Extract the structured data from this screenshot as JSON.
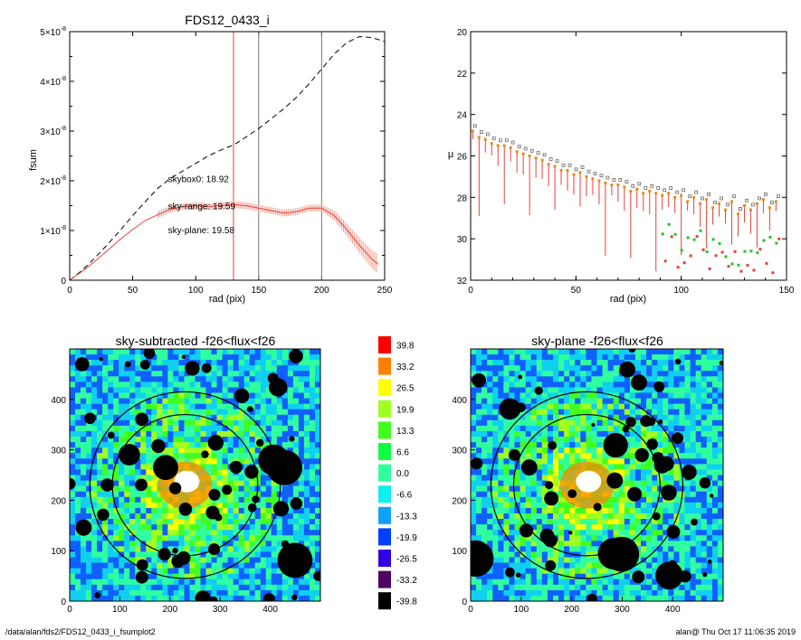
{
  "footer": {
    "path": "/data/alan/fds2/FDS12_0433_i_fsumplot2",
    "stamp": "alan@  Thu Oct 17 11:06:35 2019"
  },
  "chart_data": [
    {
      "type": "line",
      "title": "FDS12_0433_i",
      "xlabel": "rad (pix)",
      "ylabel": "fsum",
      "xlim": [
        0,
        250
      ],
      "ylim": [
        0,
        5e-08
      ],
      "x_ticks": [
        "0",
        "50",
        "100",
        "150",
        "200",
        "250"
      ],
      "y_ticks": [
        {
          "value": 0,
          "mant": "0",
          "exp": ""
        },
        {
          "value": 1e-08,
          "mant": "1×10",
          "exp": "-8"
        },
        {
          "value": 2e-08,
          "mant": "2×10",
          "exp": "-8"
        },
        {
          "value": 3e-08,
          "mant": "3×10",
          "exp": "-8"
        },
        {
          "value": 4e-08,
          "mant": "4×10",
          "exp": "-8"
        },
        {
          "value": 5e-08,
          "mant": "5×10",
          "exp": "-8"
        }
      ],
      "vlines": [
        {
          "x": 130,
          "color": "#e8403a"
        },
        {
          "x": 150,
          "color": "#777777"
        },
        {
          "x": 200,
          "color": "#777777"
        }
      ],
      "annotations": [
        {
          "text": "skybox0: 18.92",
          "color": "#000000",
          "x": 78,
          "y": 1.97e-08
        },
        {
          "text": "sky-range: 19.59",
          "color": "#e8403a",
          "x": 78,
          "y": 1.43e-08
        },
        {
          "text": "sky-plane: 19.58",
          "color": "#2cc02c",
          "x": 78,
          "y": 9.5e-09
        }
      ],
      "series": [
        {
          "style": "dashed",
          "color": "#000000",
          "x": [
            0,
            10,
            20,
            30,
            40,
            50,
            60,
            70,
            80,
            90,
            100,
            110,
            120,
            130,
            140,
            150,
            160,
            170,
            180,
            190,
            200,
            210,
            220,
            230,
            240,
            250
          ],
          "y": [
            0,
            2e-09,
            4.5e-09,
            7.2e-09,
            1e-08,
            1.3e-08,
            1.58e-08,
            1.85e-08,
            2.05e-08,
            2.2e-08,
            2.35e-08,
            2.5e-08,
            2.62e-08,
            2.72e-08,
            2.88e-08,
            3.05e-08,
            3.25e-08,
            3.45e-08,
            3.68e-08,
            3.95e-08,
            4.25e-08,
            4.55e-08,
            4.78e-08,
            4.9e-08,
            4.88e-08,
            4.8e-08
          ]
        },
        {
          "style": "solid",
          "color": "#e8403a",
          "errorbars": true,
          "err": 7e-10,
          "x": [
            0,
            10,
            20,
            30,
            40,
            50,
            60,
            70,
            80,
            90,
            100,
            110,
            120,
            130,
            140,
            150,
            160,
            170,
            180,
            190,
            200,
            210,
            220,
            230,
            240,
            245
          ],
          "y": [
            0,
            1.8e-09,
            3.8e-09,
            6e-09,
            8.2e-09,
            1.02e-08,
            1.2e-08,
            1.32e-08,
            1.43e-08,
            1.48e-08,
            1.5e-08,
            1.48e-08,
            1.5e-08,
            1.52e-08,
            1.5e-08,
            1.45e-08,
            1.4e-08,
            1.35e-08,
            1.38e-08,
            1.45e-08,
            1.45e-08,
            1.3e-08,
            1.02e-08,
            7e-09,
            4.2e-09,
            3.2e-09
          ]
        }
      ]
    },
    {
      "type": "scatter",
      "xlabel": "rad (pix)",
      "ylabel": "μ",
      "xlim": [
        0,
        150
      ],
      "ylim": [
        20,
        32
      ],
      "y_reversed": true,
      "x_ticks": [
        "0",
        "50",
        "100",
        "150"
      ],
      "y_ticks": [
        "20",
        "22",
        "24",
        "26",
        "28",
        "30",
        "32"
      ],
      "profile": {
        "r": [
          1,
          4,
          7,
          10,
          13,
          16,
          19,
          22,
          25,
          28,
          31,
          34,
          37,
          40,
          43,
          46,
          49,
          52,
          55,
          58,
          61,
          64,
          67,
          70,
          73,
          76,
          79,
          82,
          85,
          88,
          91,
          94,
          97,
          100,
          103,
          106,
          109,
          112,
          115,
          118,
          121,
          124,
          127,
          130,
          133,
          136,
          139,
          142,
          145
        ],
        "mu": [
          24.8,
          25.1,
          25.2,
          25.4,
          25.5,
          25.5,
          25.6,
          25.8,
          25.9,
          26.0,
          26.1,
          26.2,
          26.4,
          26.5,
          26.7,
          26.7,
          26.9,
          26.8,
          27.0,
          27.1,
          27.2,
          27.3,
          27.4,
          27.4,
          27.5,
          27.7,
          27.6,
          27.8,
          27.7,
          27.8,
          27.9,
          27.8,
          28.0,
          27.9,
          28.2,
          28.0,
          28.3,
          28.1,
          28.5,
          28.3,
          28.6,
          28.2,
          28.8,
          28.4,
          28.6,
          28.3,
          28.1,
          28.5,
          28.2
        ],
        "colors": {
          "black": "#555555",
          "red": "#e8403a",
          "green": "#2cc02c",
          "orange": "#e88a1a"
        }
      }
    },
    {
      "type": "heatmap",
      "title": "sky-subtracted -f26<flux<f26",
      "xlim": [
        0,
        500
      ],
      "ylim": [
        0,
        500
      ],
      "x_ticks": [
        "0",
        "100",
        "200",
        "300",
        "400"
      ],
      "y_ticks": [
        "0",
        "100",
        "200",
        "300",
        "400"
      ]
    },
    {
      "type": "heatmap",
      "title": "sky-plane -f26<flux<f26",
      "xlim": [
        0,
        500
      ],
      "ylim": [
        0,
        500
      ],
      "x_ticks": [
        "0",
        "100",
        "200",
        "300",
        "400"
      ],
      "y_ticks": [
        "0",
        "100",
        "200",
        "300",
        "400"
      ]
    }
  ],
  "colorbar": {
    "labels": [
      "39.8",
      "33.2",
      "26.5",
      "19.9",
      "13.3",
      "6.6",
      "0.0",
      "-6.6",
      "-13.3",
      "-19.9",
      "-26.5",
      "-33.2",
      "-39.8"
    ],
    "colors": [
      "#ff0000",
      "#ff8000",
      "#ffff00",
      "#a0ff20",
      "#40ff20",
      "#10ff40",
      "#30ffa0",
      "#10f0f0",
      "#10a0ff",
      "#0040ff",
      "#3000e0",
      "#500060",
      "#000000"
    ]
  }
}
